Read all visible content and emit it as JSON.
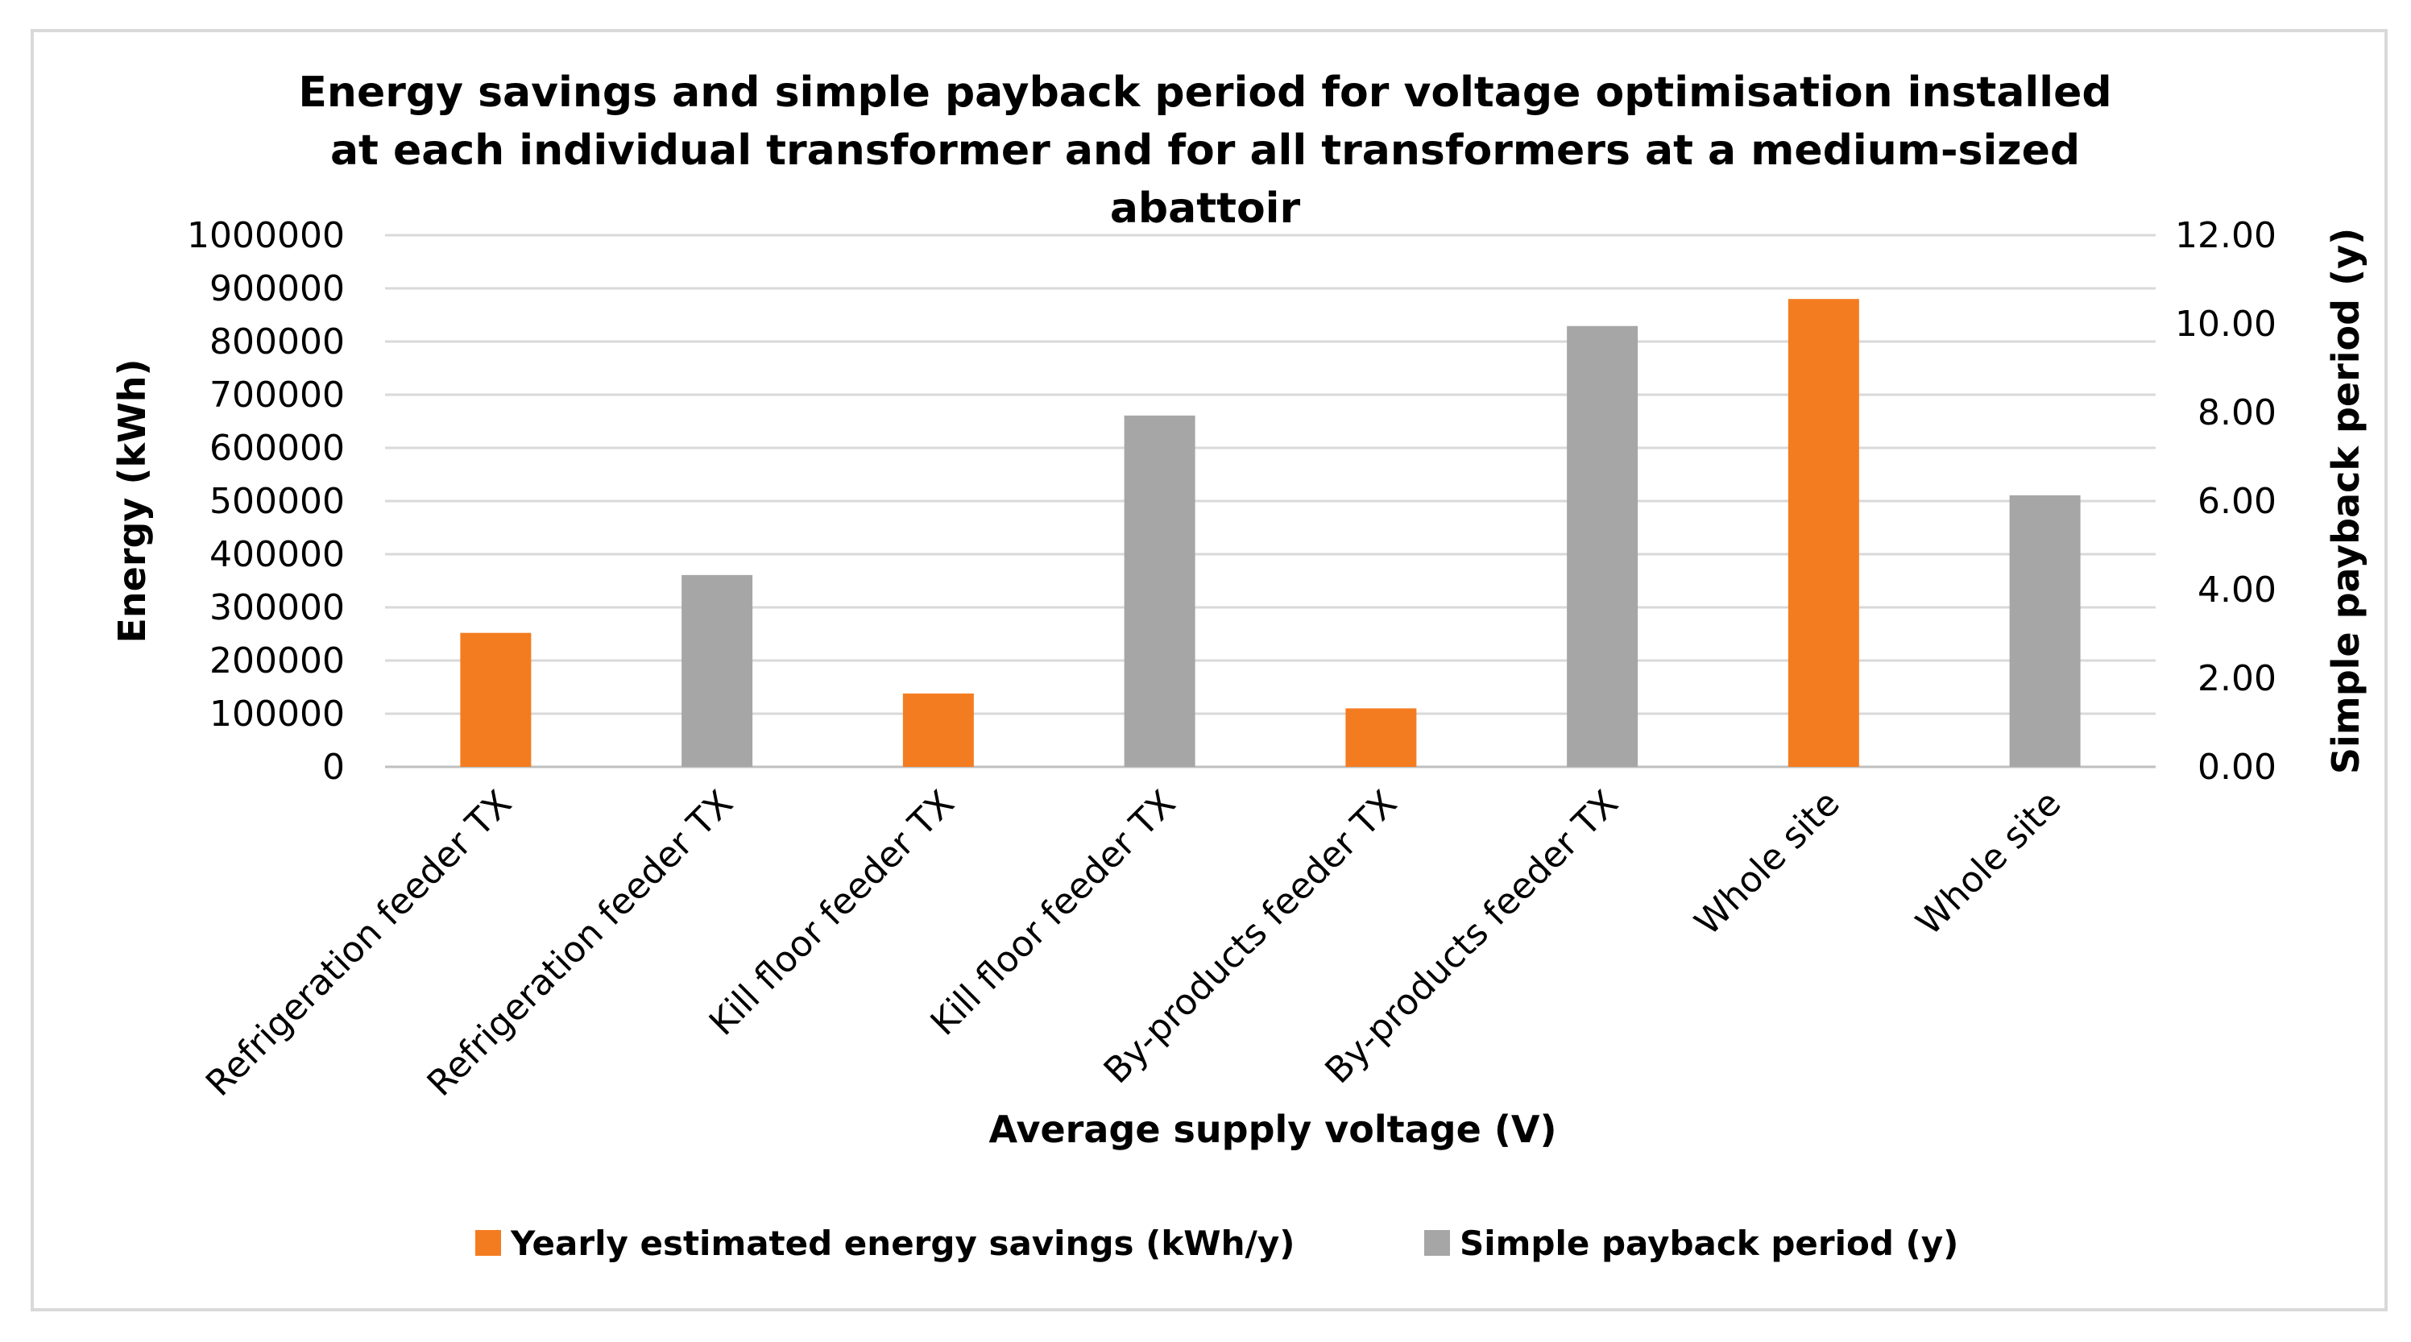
{
  "chart_data": {
    "type": "bar",
    "title_lines": [
      "Energy savings and simple payback period for voltage optimisation installed",
      "at each individual transformer and for all transformers at a medium-sized",
      "abattoir"
    ],
    "xlabel": "Average supply voltage (V)",
    "ylabel": "Energy (kWh)",
    "y2label": "Simple payback period (y)",
    "ylim": [
      0,
      1000000
    ],
    "y2lim": [
      0,
      12
    ],
    "yticks": [
      "0",
      "100000",
      "200000",
      "300000",
      "400000",
      "500000",
      "600000",
      "700000",
      "800000",
      "900000",
      "1000000"
    ],
    "y2ticks": [
      "0.00",
      "2.00",
      "4.00",
      "6.00",
      "8.00",
      "10.00",
      "12.00"
    ],
    "categories": [
      "Refrigeration feeder TX",
      "Refrigeration feeder TX",
      "Kill floor feeder TX",
      "Kill floor feeder TX",
      "By-products feeder TX",
      "By-products feeder TX",
      "Whole site",
      "Whole site"
    ],
    "series": [
      {
        "name": "Yearly estimated energy savings (kWh/y)",
        "axis": "left",
        "color": "#f47c20",
        "values": [
          252000,
          null,
          138000,
          null,
          110000,
          null,
          880000,
          null
        ]
      },
      {
        "name": "Simple payback period (y)",
        "axis": "right",
        "color": "#a6a6a6",
        "values": [
          null,
          4.33,
          null,
          7.93,
          null,
          9.95,
          null,
          6.13
        ]
      }
    ],
    "legend_position": "bottom",
    "grid": true
  }
}
